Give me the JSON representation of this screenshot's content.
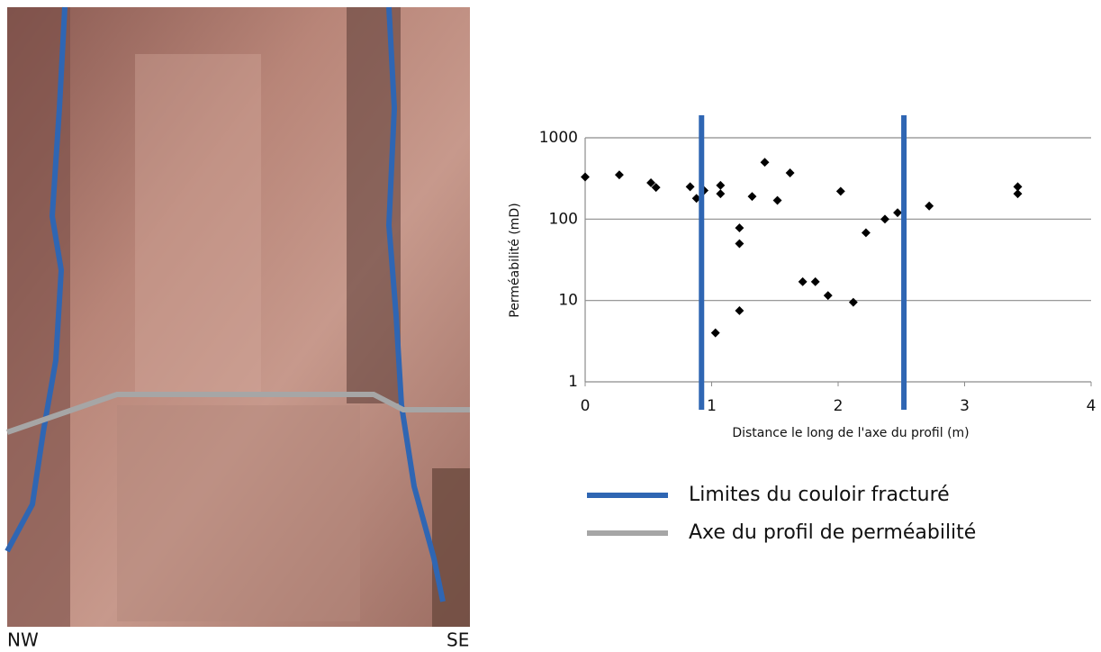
{
  "photo": {
    "labels": [
      "NW",
      "SE"
    ]
  },
  "legend": [
    {
      "label": "Limites du couloir fracturé",
      "color": "#2f66b3"
    },
    {
      "label": "Axe du profil de perméabilité",
      "color": "#a6a6a6"
    }
  ],
  "chart_data": {
    "type": "scatter",
    "x_label": "Distance le long de l'axe du profil (m)",
    "y_label": "Perméabilité (mD)",
    "x": [
      0,
      0.27,
      0.52,
      0.56,
      0.83,
      0.88,
      0.94,
      1.03,
      1.07,
      1.07,
      1.22,
      1.22,
      1.22,
      1.32,
      1.42,
      1.52,
      1.62,
      1.72,
      1.82,
      1.92,
      2.02,
      2.12,
      2.22,
      2.37,
      2.47,
      2.72,
      3.42,
      3.42
    ],
    "values": [
      330,
      350,
      280,
      245,
      250,
      180,
      225,
      4,
      260,
      205,
      78,
      50,
      7.5,
      190,
      500,
      170,
      370,
      17,
      17,
      11.5,
      220,
      9.5,
      68,
      100,
      120,
      145,
      250,
      205
    ],
    "color": "#000000",
    "xlim": [
      0,
      4
    ],
    "ylim": [
      1,
      1000
    ],
    "xticks": [
      0,
      1,
      2,
      3,
      4
    ],
    "yticks": [
      1,
      10,
      100,
      1000
    ],
    "log_y": true,
    "grid": true,
    "vlines": {
      "x": [
        0.92,
        2.52
      ],
      "color": "#2f66b3"
    }
  }
}
